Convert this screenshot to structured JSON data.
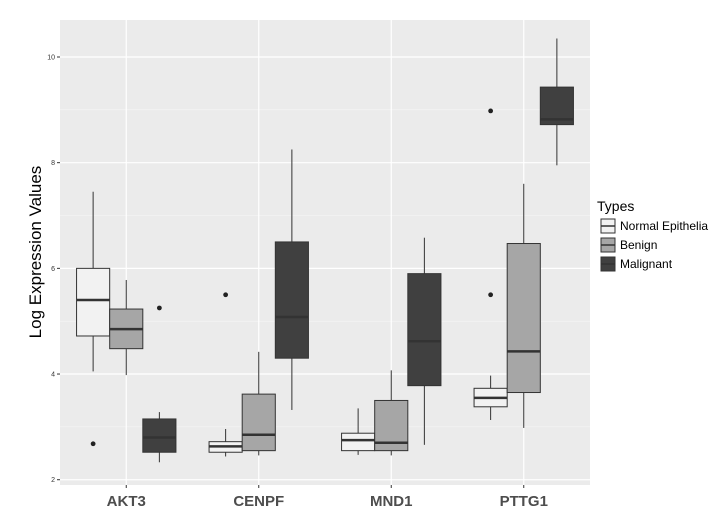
{
  "chart_data": {
    "type": "boxplot",
    "ylabel": "Log Expression Values",
    "ylim": [
      1.9,
      10.7
    ],
    "yticks": [
      2,
      4,
      6,
      8,
      10
    ],
    "grid": true,
    "legend_position": "right",
    "legend_title": "Types",
    "categories": [
      "AKT3",
      "CENPF",
      "MND1",
      "PTTG1"
    ],
    "series": [
      {
        "name": "Normal Epithelia",
        "color": "#f2f2f2",
        "boxes": [
          {
            "min": 4.05,
            "q1": 4.72,
            "median": 5.4,
            "q3": 6.0,
            "max": 7.45,
            "outliers": [
              2.68
            ]
          },
          {
            "min": 2.44,
            "q1": 2.52,
            "median": 2.63,
            "q3": 2.72,
            "max": 2.96,
            "outliers": [
              5.5
            ]
          },
          {
            "min": 2.47,
            "q1": 2.55,
            "median": 2.75,
            "q3": 2.88,
            "max": 3.35,
            "outliers": []
          },
          {
            "min": 3.13,
            "q1": 3.38,
            "median": 3.55,
            "q3": 3.73,
            "max": 3.97,
            "outliers": [
              8.98,
              5.5
            ]
          }
        ]
      },
      {
        "name": "Benign",
        "color": "#a6a6a6",
        "boxes": [
          {
            "min": 3.98,
            "q1": 4.48,
            "median": 4.85,
            "q3": 5.23,
            "max": 5.78,
            "outliers": []
          },
          {
            "min": 2.46,
            "q1": 2.55,
            "median": 2.85,
            "q3": 3.62,
            "max": 4.42,
            "outliers": []
          },
          {
            "min": 2.46,
            "q1": 2.55,
            "median": 2.7,
            "q3": 3.5,
            "max": 4.07,
            "outliers": []
          },
          {
            "min": 2.98,
            "q1": 3.65,
            "median": 4.43,
            "q3": 6.47,
            "max": 7.6,
            "outliers": []
          }
        ]
      },
      {
        "name": "Malignant",
        "color": "#404040",
        "boxes": [
          {
            "min": 2.33,
            "q1": 2.52,
            "median": 2.8,
            "q3": 3.15,
            "max": 3.28,
            "outliers": [
              5.25
            ]
          },
          {
            "min": 3.32,
            "q1": 4.3,
            "median": 5.08,
            "q3": 6.5,
            "max": 8.25,
            "outliers": []
          },
          {
            "min": 2.66,
            "q1": 3.78,
            "median": 4.62,
            "q3": 5.9,
            "max": 6.58,
            "outliers": []
          },
          {
            "min": 7.95,
            "q1": 8.72,
            "median": 8.82,
            "q3": 9.43,
            "max": 10.35,
            "outliers": []
          }
        ]
      }
    ]
  }
}
